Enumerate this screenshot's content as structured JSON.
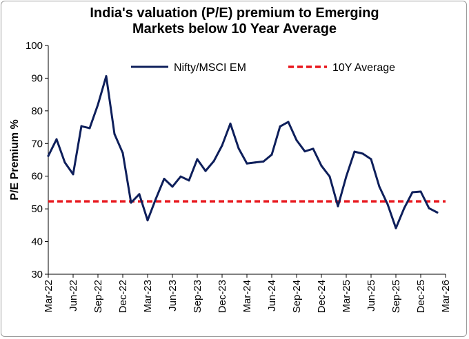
{
  "chart_data": {
    "type": "line",
    "title_line1": "India's valuation (P/E) premium to Emerging",
    "title_line2": "Markets below 10 Year Average",
    "xlabel": "",
    "ylabel": "P/E Premium %",
    "ylim": [
      30,
      100
    ],
    "yticks": [
      30,
      40,
      50,
      60,
      70,
      80,
      90,
      100
    ],
    "grid": false,
    "legend_position": "top-right",
    "x_tick_labels": [
      "Mar-22",
      "Jun-22",
      "Sep-22",
      "Dec-22",
      "Mar-23",
      "Jun-23",
      "Sep-23",
      "Dec-23",
      "Mar-24",
      "Jun-24",
      "Sep-24",
      "Dec-24",
      "Mar-25",
      "Jun-25",
      "Sep-25",
      "Dec-25",
      "Mar-26"
    ],
    "x": [
      "Mar-22",
      "Apr-22",
      "May-22",
      "Jun-22",
      "Jul-22",
      "Aug-22",
      "Sep-22",
      "Oct-22",
      "Nov-22",
      "Dec-22",
      "Jan-23",
      "Feb-23",
      "Mar-23",
      "Apr-23",
      "May-23",
      "Jun-23",
      "Jul-23",
      "Aug-23",
      "Sep-23",
      "Oct-23",
      "Nov-23",
      "Dec-23",
      "Jan-24",
      "Feb-24",
      "Mar-24",
      "Apr-24",
      "May-24",
      "Jun-24",
      "Jul-24",
      "Aug-24",
      "Sep-24",
      "Oct-24",
      "Nov-24",
      "Dec-24",
      "Jan-25",
      "Feb-25",
      "Mar-25",
      "Apr-25",
      "May-25",
      "Jun-25",
      "Jul-25",
      "Aug-25",
      "Sep-25",
      "Oct-25",
      "Nov-25",
      "Dec-25",
      "Jan-26",
      "Feb-26"
    ],
    "series": [
      {
        "name": "Nifty/MSCI EM",
        "color": "#0e1f5b",
        "style": "solid",
        "values": [
          66.2,
          71.3,
          64.2,
          60.6,
          75.3,
          74.7,
          81.9,
          90.6,
          72.9,
          67.1,
          51.9,
          54.5,
          46.5,
          53.1,
          59.2,
          56.8,
          59.9,
          58.7,
          65.2,
          61.6,
          64.6,
          69.4,
          76.1,
          68.5,
          63.9,
          64.2,
          64.5,
          66.6,
          75.2,
          76.6,
          71.0,
          67.6,
          68.4,
          63.2,
          59.9,
          50.8,
          59.9,
          67.5,
          66.9,
          65.2,
          56.8,
          51.4,
          44.1,
          50.2,
          55.1,
          55.3,
          50.2,
          48.9
        ]
      },
      {
        "name": "10Y Average",
        "color": "#e8151b",
        "style": "dashed",
        "value": 52.3
      }
    ]
  }
}
